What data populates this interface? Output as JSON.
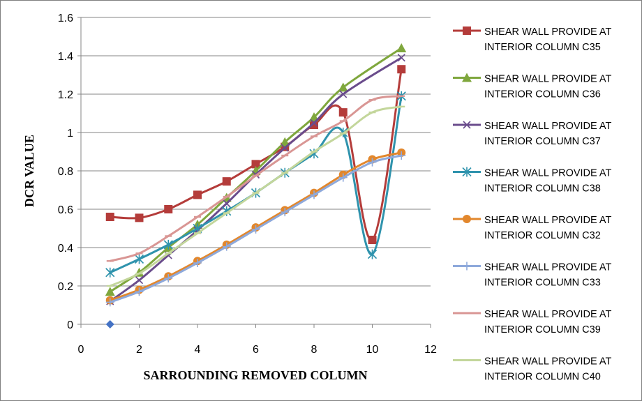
{
  "chart_data": {
    "type": "scatter",
    "title": "",
    "xlabel": "SARROUNDING REMOVED COLUMN",
    "ylabel": "DCR VALUE",
    "xlim": [
      0,
      12
    ],
    "ylim": [
      0,
      1.6
    ],
    "x_ticks": [
      0,
      2,
      4,
      6,
      8,
      10,
      12
    ],
    "y_ticks": [
      0,
      0.2,
      0.4,
      0.6,
      0.8,
      1,
      1.2,
      1.4,
      1.6
    ],
    "grid": "horizontal major",
    "legend_position": "right",
    "extra_point": {
      "x": 1,
      "y": 0,
      "color": "#4472c4",
      "marker": "diamond"
    },
    "series": [
      {
        "label_lines": [
          "SHEAR WALL PROVIDE AT",
          "INTERIOR COLUMN  C35"
        ],
        "color": "#b43c3a",
        "marker": "square",
        "x": [
          1,
          2,
          3,
          4,
          5,
          6,
          7,
          8,
          9,
          10,
          11
        ],
        "y": [
          0.56,
          0.555,
          0.6,
          0.675,
          0.745,
          0.835,
          0.925,
          1.04,
          1.105,
          0.44,
          1.33
        ]
      },
      {
        "label_lines": [
          "SHEAR WALL PROVIDE AT",
          "INTERIOR COLUMN  C36"
        ],
        "color": "#7fa73d",
        "marker": "triangle",
        "x": [
          1,
          2,
          3,
          4,
          5,
          6,
          7,
          8,
          9,
          11
        ],
        "y": [
          0.17,
          0.27,
          0.4,
          0.52,
          0.66,
          0.8,
          0.95,
          1.08,
          1.235,
          1.44
        ]
      },
      {
        "label_lines": [
          "SHEAR WALL PROVIDE AT",
          "INTERIOR COLUMN  C37"
        ],
        "color": "#6a4c8c",
        "marker": "x",
        "x": [
          1,
          2,
          3,
          4,
          5,
          6,
          7,
          8,
          9,
          11
        ],
        "y": [
          0.12,
          0.23,
          0.36,
          0.49,
          0.63,
          0.78,
          0.92,
          1.05,
          1.2,
          1.39
        ]
      },
      {
        "label_lines": [
          "SHEAR WALL PROVIDE AT",
          "INTERIOR COLUMN  C38"
        ],
        "color": "#2f93ad",
        "marker": "asterisk",
        "x": [
          1,
          2,
          3,
          4,
          5,
          6,
          7,
          8,
          9,
          10,
          11
        ],
        "y": [
          0.27,
          0.34,
          0.415,
          0.5,
          0.59,
          0.685,
          0.79,
          0.89,
          1.0,
          0.365,
          1.19
        ]
      },
      {
        "label_lines": [
          "SHEAR WALL PROVIDE AT",
          "INTERIOR COLUMN  C32"
        ],
        "color": "#e2872d",
        "marker": "circle",
        "x": [
          1,
          2,
          3,
          4,
          5,
          6,
          7,
          8,
          9,
          10,
          11
        ],
        "y": [
          0.125,
          0.18,
          0.25,
          0.33,
          0.415,
          0.505,
          0.595,
          0.685,
          0.78,
          0.86,
          0.895
        ]
      },
      {
        "label_lines": [
          "SHEAR WALL PROVIDE AT",
          "INTERIOR COLUMN  C33"
        ],
        "color": "#8ea9db",
        "marker": "plus",
        "x": [
          1,
          2,
          3,
          4,
          5,
          6,
          7,
          8,
          9,
          10,
          11
        ],
        "y": [
          0.115,
          0.17,
          0.24,
          0.32,
          0.405,
          0.495,
          0.585,
          0.675,
          0.765,
          0.845,
          0.88
        ]
      },
      {
        "label_lines": [
          "SHEAR WALL PROVIDE AT",
          "INTERIOR COLUMN  C39"
        ],
        "color": "#d99694",
        "marker": "dash",
        "x": [
          1,
          2,
          3,
          4,
          5,
          6,
          7,
          8,
          9,
          10,
          11
        ],
        "y": [
          0.33,
          0.37,
          0.46,
          0.56,
          0.665,
          0.775,
          0.88,
          0.98,
          1.06,
          1.17,
          1.19
        ]
      },
      {
        "label_lines": [
          "SHEAR WALL PROVIDE AT",
          "INTERIOR COLUMN  C40"
        ],
        "color": "#c3d69b",
        "marker": "dash",
        "x": [
          1,
          2,
          3,
          4,
          5,
          6,
          7,
          8,
          9,
          10,
          11
        ],
        "y": [
          0.2,
          0.265,
          0.37,
          0.475,
          0.58,
          0.685,
          0.79,
          0.9,
          0.995,
          1.105,
          1.135
        ]
      }
    ]
  }
}
